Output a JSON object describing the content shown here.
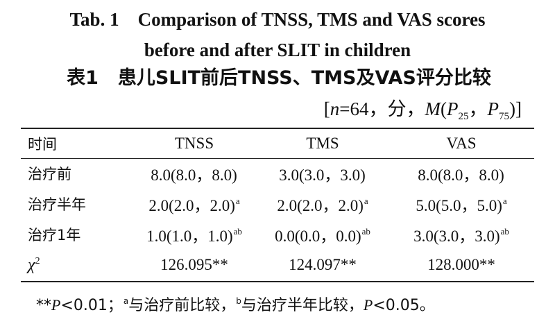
{
  "title_en_line1": "Tab. 1    Comparison of TNSS, TMS and VAS scores",
  "title_en_line2": "before and after SLIT in children",
  "title_zh_label": "表1",
  "title_zh_text": "患儿SLIT前后TNSS、TMS及VAS评分比较",
  "stat_note": {
    "open": "[",
    "n_var": "n",
    "n_val": "=64，分，",
    "m_var": "M",
    "paren_open": "(",
    "p25_var": "P",
    "p25_sub": "25",
    "comma": "，",
    "p75_var": "P",
    "p75_sub": "75",
    "close": ")]"
  },
  "columns": [
    "时间",
    "TNSS",
    "TMS",
    "VAS"
  ],
  "rows": [
    {
      "label": "治疗前",
      "values": [
        {
          "v": "8.0(8.0，8.0)",
          "sup": ""
        },
        {
          "v": "3.0(3.0，3.0)",
          "sup": ""
        },
        {
          "v": "8.0(8.0，8.0)",
          "sup": ""
        }
      ]
    },
    {
      "label": "治疗半年",
      "values": [
        {
          "v": "2.0(2.0，2.0)",
          "sup": "a"
        },
        {
          "v": "2.0(2.0，2.0)",
          "sup": "a"
        },
        {
          "v": "5.0(5.0，5.0)",
          "sup": "a"
        }
      ]
    },
    {
      "label": "治疗1年",
      "values": [
        {
          "v": "1.0(1.0，1.0)",
          "sup": "ab"
        },
        {
          "v": "0.0(0.0，0.0)",
          "sup": "ab"
        },
        {
          "v": "3.0(3.0，3.0)",
          "sup": "ab"
        }
      ]
    }
  ],
  "chi_row": {
    "symbol": "χ",
    "power": "2",
    "values": [
      "126.095**",
      "124.097**",
      "128.000**"
    ]
  },
  "footnote": {
    "stars": "**",
    "p1": "P",
    "p1_text": "<0.01；",
    "sup_a": "a",
    "text_a": "与治疗前比较，",
    "sup_b": "b",
    "text_b": "与治疗半年比较，",
    "p2": "P",
    "p2_text": "<0.05。"
  }
}
